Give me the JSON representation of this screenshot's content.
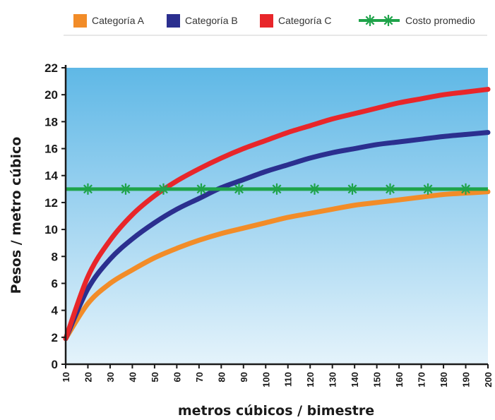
{
  "chart_data": {
    "type": "line",
    "title": "",
    "xlabel": "metros cúbicos / bimestre",
    "ylabel": "Pesos / metro cúbico",
    "xlim": [
      10,
      200
    ],
    "ylim": [
      0,
      22
    ],
    "x_ticks": [
      10,
      20,
      30,
      40,
      50,
      60,
      70,
      80,
      90,
      100,
      110,
      120,
      130,
      140,
      150,
      160,
      170,
      180,
      190,
      200
    ],
    "y_ticks": [
      0,
      2,
      4,
      6,
      8,
      10,
      12,
      14,
      16,
      18,
      20,
      22
    ],
    "grid": false,
    "legend_position": "top",
    "x": [
      10,
      20,
      30,
      40,
      50,
      60,
      70,
      80,
      90,
      100,
      110,
      120,
      130,
      140,
      150,
      160,
      170,
      180,
      190,
      200
    ],
    "series": [
      {
        "name": "Categoría A",
        "color": "#f28c28",
        "marker": "none",
        "values": [
          1.9,
          4.5,
          6.0,
          7.0,
          7.9,
          8.6,
          9.2,
          9.7,
          10.1,
          10.5,
          10.9,
          11.2,
          11.5,
          11.8,
          12.0,
          12.2,
          12.4,
          12.6,
          12.7,
          12.8
        ]
      },
      {
        "name": "Categoría B",
        "color": "#2b2f8f",
        "marker": "none",
        "values": [
          1.9,
          5.6,
          7.8,
          9.3,
          10.5,
          11.5,
          12.3,
          13.1,
          13.7,
          14.3,
          14.8,
          15.3,
          15.7,
          16.0,
          16.3,
          16.5,
          16.7,
          16.9,
          17.05,
          17.2
        ]
      },
      {
        "name": "Categoría C",
        "color": "#e8262a",
        "marker": "none",
        "values": [
          1.9,
          6.5,
          9.2,
          11.1,
          12.5,
          13.6,
          14.5,
          15.3,
          16.0,
          16.6,
          17.2,
          17.7,
          18.2,
          18.6,
          19.0,
          19.4,
          19.7,
          20.0,
          20.2,
          20.4
        ]
      },
      {
        "name": "Costo promedio",
        "color": "#1fa34a",
        "marker": "star",
        "constant": 13,
        "marker_x": [
          20,
          37,
          54,
          71,
          88,
          105,
          122,
          139,
          156,
          173,
          190
        ]
      }
    ]
  }
}
